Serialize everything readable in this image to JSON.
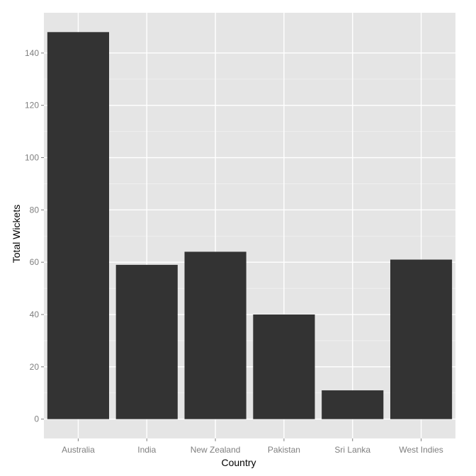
{
  "chart_data": {
    "type": "bar",
    "title": "",
    "xlabel": "Country",
    "ylabel": "Total Wickets",
    "categories": [
      "Australia",
      "India",
      "New Zealand",
      "Pakistan",
      "Sri Lanka",
      "West Indies"
    ],
    "values": [
      148,
      59,
      64,
      40,
      11,
      61
    ],
    "ylim": [
      -7.4,
      155.4
    ],
    "yticks": [
      0,
      20,
      40,
      60,
      80,
      100,
      120,
      140
    ],
    "ytick_labels": [
      "0",
      "20",
      "40",
      "60",
      "80",
      "100",
      "120",
      "140"
    ],
    "grid": true,
    "legend": "none",
    "colors": {
      "panel": "#e5e5e5",
      "grid_major": "#ffffff",
      "grid_minor": "#f2f2f2",
      "bar": "#333333",
      "tick_text": "#7f7f7f",
      "tick_mark": "#7f7f7f",
      "axis_title": "#000000"
    }
  }
}
